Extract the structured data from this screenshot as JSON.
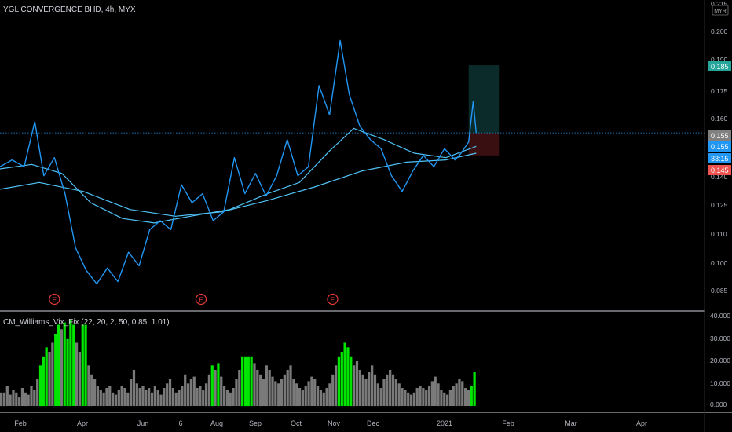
{
  "header": {
    "title": "YGL CONVERGENCE BHD, 4h, MYX"
  },
  "currency_badge": "MYR",
  "price_axis": {
    "ticks": [
      "0.215",
      "0.200",
      "0.190",
      "0.175",
      "0.160",
      "0.140",
      "0.125",
      "0.110",
      "0.100",
      "0.085"
    ]
  },
  "price_tags": {
    "target": "0.185",
    "entry": "0.155",
    "last": "0.155",
    "countdown": "33:15",
    "stop": "0.145"
  },
  "earnings_marker": "E",
  "indicator": {
    "label": "CM_Williams_Vix_Fix (22, 20, 2, 50, 0.85, 1.01)",
    "ticks": [
      "40.000",
      "30.000",
      "20.000",
      "10.000",
      "0.000"
    ]
  },
  "time_axis": {
    "ticks": [
      "Feb",
      "Apr",
      "Jun",
      "6",
      "Aug",
      "Sep",
      "Oct",
      "Nov",
      "Dec",
      "2021",
      "Feb",
      "Mar",
      "Apr"
    ]
  },
  "colors": {
    "background": "#000000",
    "price_line": "#2196f3",
    "ma_line": "#4fc3f7",
    "target_tag": "#26a69a",
    "stop_tag": "#ef5350",
    "target_zone": "#0b2a2a",
    "stop_zone": "#3a0f12",
    "vix_high": "#00e600",
    "vix_normal": "#7a7a7a",
    "earnings": "#e53935"
  },
  "chart_data": [
    {
      "type": "line",
      "title": "YGL CONVERGENCE BHD, 4h, MYX",
      "x_range": [
        "2020-01-20",
        "2021-04-30"
      ],
      "ylim": [
        0.078,
        0.217
      ],
      "series": [
        {
          "role": "price",
          "points": [
            [
              "2020-01-20",
              0.14
            ],
            [
              "2020-01-28",
              0.143
            ],
            [
              "2020-02-05",
              0.14
            ],
            [
              "2020-02-12",
              0.16
            ],
            [
              "2020-02-18",
              0.136
            ],
            [
              "2020-02-25",
              0.144
            ],
            [
              "2020-03-03",
              0.128
            ],
            [
              "2020-03-10",
              0.104
            ],
            [
              "2020-03-17",
              0.094
            ],
            [
              "2020-03-24",
              0.088
            ],
            [
              "2020-03-31",
              0.095
            ],
            [
              "2020-04-07",
              0.089
            ],
            [
              "2020-04-14",
              0.102
            ],
            [
              "2020-04-21",
              0.096
            ],
            [
              "2020-04-28",
              0.112
            ],
            [
              "2020-05-05",
              0.116
            ],
            [
              "2020-05-12",
              0.112
            ],
            [
              "2020-05-19",
              0.132
            ],
            [
              "2020-05-26",
              0.124
            ],
            [
              "2020-06-02",
              0.128
            ],
            [
              "2020-06-09",
              0.116
            ],
            [
              "2020-06-16",
              0.12
            ],
            [
              "2020-06-23",
              0.144
            ],
            [
              "2020-06-30",
              0.128
            ],
            [
              "2020-07-07",
              0.137
            ],
            [
              "2020-07-14",
              0.127
            ],
            [
              "2020-07-21",
              0.136
            ],
            [
              "2020-07-28",
              0.152
            ],
            [
              "2020-08-04",
              0.136
            ],
            [
              "2020-08-11",
              0.14
            ],
            [
              "2020-08-18",
              0.176
            ],
            [
              "2020-08-25",
              0.163
            ],
            [
              "2020-09-01",
              0.196
            ],
            [
              "2020-09-07",
              0.172
            ],
            [
              "2020-09-14",
              0.158
            ],
            [
              "2020-09-21",
              0.152
            ],
            [
              "2020-09-28",
              0.148
            ],
            [
              "2020-10-05",
              0.136
            ],
            [
              "2020-10-12",
              0.129
            ],
            [
              "2020-10-19",
              0.138
            ],
            [
              "2020-10-26",
              0.145
            ],
            [
              "2020-11-02",
              0.14
            ],
            [
              "2020-11-09",
              0.148
            ],
            [
              "2020-11-16",
              0.143
            ],
            [
              "2020-11-20",
              0.146
            ],
            [
              "2020-11-25",
              0.151
            ],
            [
              "2020-11-28",
              0.169
            ],
            [
              "2020-11-30",
              0.155
            ]
          ]
        },
        {
          "role": "moving-average-fast",
          "points": [
            [
              "2020-01-20",
              0.139
            ],
            [
              "2020-02-10",
              0.141
            ],
            [
              "2020-03-01",
              0.137
            ],
            [
              "2020-03-20",
              0.124
            ],
            [
              "2020-04-10",
              0.117
            ],
            [
              "2020-05-01",
              0.115
            ],
            [
              "2020-05-25",
              0.118
            ],
            [
              "2020-06-20",
              0.121
            ],
            [
              "2020-07-15",
              0.128
            ],
            [
              "2020-08-05",
              0.133
            ],
            [
              "2020-08-25",
              0.147
            ],
            [
              "2020-09-10",
              0.157
            ],
            [
              "2020-09-30",
              0.152
            ],
            [
              "2020-10-20",
              0.146
            ],
            [
              "2020-11-10",
              0.144
            ],
            [
              "2020-11-30",
              0.149
            ]
          ]
        },
        {
          "role": "moving-average-slow",
          "points": [
            [
              "2020-01-20",
              0.13
            ],
            [
              "2020-02-15",
              0.133
            ],
            [
              "2020-03-15",
              0.129
            ],
            [
              "2020-04-15",
              0.121
            ],
            [
              "2020-05-15",
              0.118
            ],
            [
              "2020-06-15",
              0.12
            ],
            [
              "2020-07-15",
              0.125
            ],
            [
              "2020-08-15",
              0.131
            ],
            [
              "2020-09-15",
              0.138
            ],
            [
              "2020-10-15",
              0.142
            ],
            [
              "2020-11-10",
              0.143
            ],
            [
              "2020-11-30",
              0.146
            ]
          ]
        }
      ],
      "position": {
        "entry": 0.155,
        "target": 0.185,
        "stop": 0.145,
        "start": "2020-11-25",
        "end": "2020-12-15"
      },
      "earnings_dates": [
        "2020-02-25",
        "2020-06-01",
        "2020-08-27"
      ]
    },
    {
      "type": "bar",
      "title": "CM_Williams_Vix_Fix (22, 20, 2, 50, 0.85, 1.01)",
      "ylim": [
        0,
        40
      ],
      "x_range": [
        "2020-01-20",
        "2020-11-30"
      ],
      "values": [
        6,
        6,
        9,
        5,
        7,
        6,
        4,
        8,
        6,
        5,
        9,
        7,
        12,
        18,
        22,
        26,
        24,
        28,
        32,
        36,
        34,
        37,
        30,
        38,
        36,
        28,
        24,
        36,
        36,
        18,
        14,
        12,
        9,
        7,
        6,
        8,
        9,
        6,
        5,
        7,
        9,
        8,
        6,
        12,
        16,
        10,
        8,
        9,
        7,
        8,
        6,
        9,
        7,
        5,
        8,
        10,
        12,
        8,
        6,
        7,
        9,
        14,
        10,
        12,
        13,
        8,
        9,
        7,
        10,
        14,
        18,
        16,
        19,
        13,
        9,
        7,
        6,
        8,
        12,
        16,
        22,
        22,
        22,
        22,
        19,
        16,
        14,
        12,
        18,
        16,
        13,
        11,
        10,
        12,
        14,
        16,
        18,
        12,
        10,
        8,
        7,
        9,
        11,
        13,
        12,
        9,
        7,
        6,
        8,
        10,
        14,
        18,
        22,
        24,
        28,
        26,
        22,
        18,
        20,
        16,
        14,
        12,
        15,
        18,
        14,
        10,
        8,
        12,
        14,
        16,
        14,
        12,
        10,
        8,
        7,
        6,
        5,
        6,
        8,
        9,
        8,
        7,
        9,
        11,
        13,
        10,
        7,
        6,
        5,
        7,
        9,
        10,
        12,
        11,
        8,
        7,
        9,
        15
      ],
      "highlighted": [
        false,
        false,
        false,
        false,
        false,
        false,
        false,
        false,
        false,
        false,
        false,
        false,
        false,
        true,
        true,
        true,
        false,
        false,
        true,
        true,
        false,
        true,
        true,
        true,
        true,
        false,
        false,
        true,
        true,
        false,
        false,
        false,
        false,
        false,
        false,
        false,
        false,
        false,
        false,
        false,
        false,
        false,
        false,
        false,
        false,
        false,
        false,
        false,
        false,
        false,
        false,
        false,
        false,
        false,
        false,
        false,
        false,
        false,
        false,
        false,
        false,
        false,
        false,
        false,
        false,
        false,
        false,
        false,
        false,
        false,
        true,
        false,
        true,
        false,
        false,
        false,
        false,
        false,
        false,
        false,
        true,
        true,
        true,
        true,
        false,
        false,
        false,
        false,
        false,
        false,
        false,
        false,
        false,
        false,
        false,
        false,
        false,
        false,
        false,
        false,
        false,
        false,
        false,
        false,
        false,
        false,
        false,
        false,
        false,
        false,
        false,
        false,
        true,
        true,
        true,
        true,
        true,
        false,
        false,
        false,
        false,
        false,
        false,
        false,
        false,
        false,
        false,
        false,
        false,
        false,
        false,
        false,
        false,
        false,
        false,
        false,
        false,
        false,
        false,
        false,
        false,
        false,
        false,
        false,
        false,
        false,
        false,
        false,
        false,
        false,
        false,
        false,
        false,
        false,
        false,
        false,
        true,
        true
      ]
    }
  ]
}
